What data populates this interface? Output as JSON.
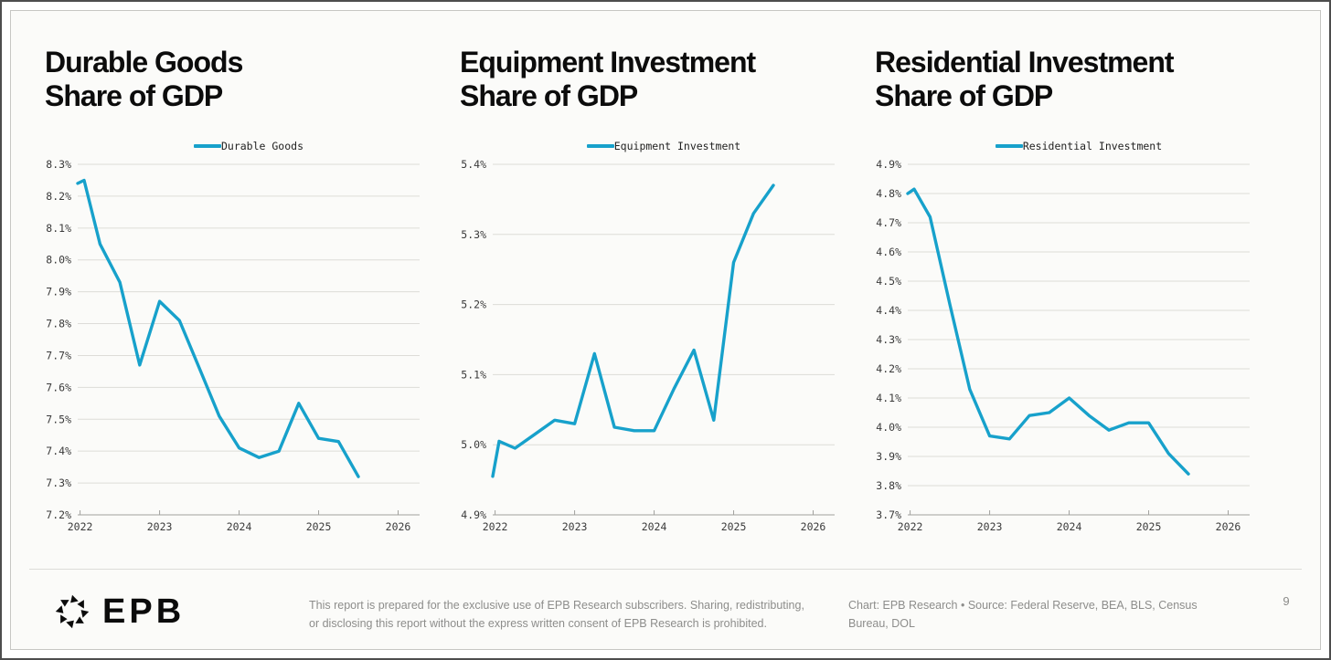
{
  "page": {
    "colors": {
      "line": "#17a1cb",
      "grid": "#dddcd8",
      "axis": "#a0a09d",
      "tick_label": "#3a3a3a",
      "background": "#fbfbf9"
    },
    "footer": {
      "logo_text": "EPB",
      "disclaimer": "This report is prepared for the exclusive use of EPB Research subscribers. Sharing, redistributing, or disclosing this report without the express written consent of EPB Research is prohibited.",
      "attribution": "Chart: EPB Research  •  Source: Federal Reserve, BEA, BLS, Census Bureau, DOL",
      "page_number": "9"
    }
  },
  "chart_data": [
    {
      "type": "line",
      "title": "Durable Goods\nShare of GDP",
      "legend_position": "top",
      "grid": true,
      "x": [
        2021.97,
        2022.05,
        2022.25,
        2022.5,
        2022.75,
        2023.0,
        2023.25,
        2023.5,
        2023.75,
        2024.0,
        2024.25,
        2024.5,
        2024.75,
        2025.0,
        2025.25,
        2025.5
      ],
      "series": [
        {
          "name": "Durable Goods",
          "values": [
            8.24,
            8.25,
            8.05,
            7.93,
            7.67,
            7.87,
            7.81,
            7.66,
            7.51,
            7.41,
            7.38,
            7.4,
            7.55,
            7.44,
            7.43,
            7.32
          ]
        }
      ],
      "xlim": [
        2021.97,
        2026.27
      ],
      "ylim": [
        7.2,
        8.3
      ],
      "x_ticks": [
        2022,
        2023,
        2024,
        2025,
        2026
      ],
      "x_tick_labels": [
        "2022",
        "2023",
        "2024",
        "2025",
        "2026"
      ],
      "y_tick_labels": [
        "8.3%",
        "8.2%",
        "8.1%",
        "8.0%",
        "7.9%",
        "7.8%",
        "7.7%",
        "7.6%",
        "7.5%",
        "7.4%",
        "7.3%",
        "7.2%"
      ]
    },
    {
      "type": "line",
      "title": "Equipment Investment\nShare of GDP",
      "legend_position": "top",
      "grid": true,
      "x": [
        2021.97,
        2022.05,
        2022.25,
        2022.5,
        2022.75,
        2023.0,
        2023.25,
        2023.5,
        2023.75,
        2024.0,
        2024.25,
        2024.5,
        2024.75,
        2025.0,
        2025.25,
        2025.5
      ],
      "series": [
        {
          "name": "Equipment Investment",
          "values": [
            4.955,
            5.005,
            4.995,
            5.015,
            5.035,
            5.03,
            5.13,
            5.025,
            5.02,
            5.02,
            5.08,
            5.135,
            5.035,
            5.26,
            5.33,
            5.37
          ]
        }
      ],
      "xlim": [
        2021.97,
        2026.27
      ],
      "ylim": [
        4.9,
        5.4
      ],
      "x_ticks": [
        2022,
        2023,
        2024,
        2025,
        2026
      ],
      "x_tick_labels": [
        "2022",
        "2023",
        "2024",
        "2025",
        "2026"
      ],
      "y_tick_labels": [
        "5.4%",
        "5.3%",
        "5.2%",
        "5.1%",
        "5.0%",
        "4.9%"
      ]
    },
    {
      "type": "line",
      "title": "Residential Investment\nShare of GDP",
      "legend_position": "top",
      "grid": true,
      "x": [
        2021.97,
        2022.05,
        2022.25,
        2022.5,
        2022.75,
        2023.0,
        2023.25,
        2023.5,
        2023.75,
        2024.0,
        2024.25,
        2024.5,
        2024.75,
        2025.0,
        2025.25,
        2025.5
      ],
      "series": [
        {
          "name": "Residential Investment",
          "values": [
            4.8,
            4.815,
            4.72,
            4.42,
            4.13,
            3.97,
            3.96,
            4.04,
            4.05,
            4.1,
            4.04,
            3.99,
            4.015,
            4.015,
            3.91,
            3.84
          ]
        }
      ],
      "xlim": [
        2021.97,
        2026.27
      ],
      "ylim": [
        3.7,
        4.9
      ],
      "x_ticks": [
        2022,
        2023,
        2024,
        2025,
        2026
      ],
      "x_tick_labels": [
        "2022",
        "2023",
        "2024",
        "2025",
        "2026"
      ],
      "y_tick_labels": [
        "4.9%",
        "4.8%",
        "4.7%",
        "4.6%",
        "4.5%",
        "4.4%",
        "4.3%",
        "4.2%",
        "4.1%",
        "4.0%",
        "3.9%",
        "3.8%",
        "3.7%"
      ]
    }
  ]
}
